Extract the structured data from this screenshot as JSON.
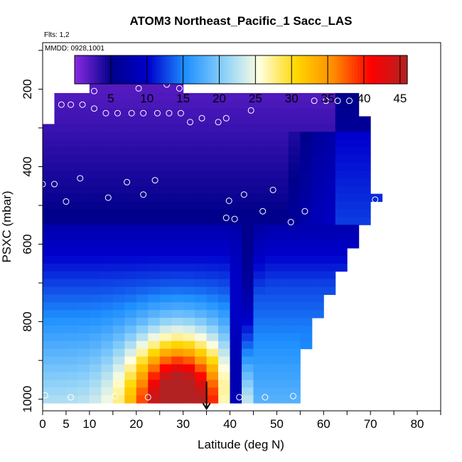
{
  "chart_data": {
    "type": "heatmap",
    "title": "ATOM3 Northeast_Pacific_1 Sacc_LAS",
    "annotations": [
      "Flts: 1,2",
      "MMDD: 0928,1001"
    ],
    "xlabel": "Latitude (deg N)",
    "ylabel": "PSXC (mbar)",
    "xlim": [
      0,
      85
    ],
    "ylim": [
      1030,
      80
    ],
    "x_ticks": [
      0,
      5,
      10,
      20,
      30,
      40,
      50,
      60,
      70,
      80
    ],
    "y_ticks": [
      200,
      400,
      600,
      800,
      1000
    ],
    "colorbar": {
      "range": [
        0,
        46
      ],
      "ticks": [
        5,
        10,
        15,
        20,
        25,
        30,
        35,
        40,
        45
      ],
      "colors": [
        "#8A2BE2",
        "#00008B",
        "#0000CD",
        "#1E90FF",
        "#87CEFA",
        "#FFFFE0",
        "#FFD700",
        "#FF8C00",
        "#FF0000",
        "#B22222"
      ]
    },
    "pressure_levels": [
      180,
      200,
      220,
      240,
      260,
      280,
      300,
      320,
      340,
      360,
      380,
      400,
      420,
      440,
      460,
      480,
      500,
      520,
      540,
      560,
      580,
      600,
      620,
      640,
      660,
      680,
      700,
      720,
      740,
      760,
      780,
      800,
      820,
      840,
      860,
      880,
      900,
      920,
      940,
      960,
      980,
      1000
    ],
    "observations": [
      {
        "lat": 1.8,
        "p": 220
      },
      {
        "lat": 4,
        "p": 240
      },
      {
        "lat": 6,
        "p": 240
      },
      {
        "lat": 8.5,
        "p": 240
      },
      {
        "lat": 11,
        "p": 250
      },
      {
        "lat": 11,
        "p": 205
      },
      {
        "lat": 13.5,
        "p": 262
      },
      {
        "lat": 16,
        "p": 262
      },
      {
        "lat": 19,
        "p": 262
      },
      {
        "lat": 21.5,
        "p": 262
      },
      {
        "lat": 24.5,
        "p": 262
      },
      {
        "lat": 27,
        "p": 262
      },
      {
        "lat": 29.5,
        "p": 262
      },
      {
        "lat": 31.5,
        "p": 285
      },
      {
        "lat": 34,
        "p": 275
      },
      {
        "lat": 37.5,
        "p": 285
      },
      {
        "lat": 39.2,
        "p": 275
      },
      {
        "lat": 44.5,
        "p": 255
      },
      {
        "lat": 58,
        "p": 230
      },
      {
        "lat": 60.5,
        "p": 230
      },
      {
        "lat": 63,
        "p": 230
      },
      {
        "lat": 65.5,
        "p": 230
      },
      {
        "lat": 68.5,
        "p": 230
      },
      {
        "lat": 20.5,
        "p": 198
      },
      {
        "lat": 26.5,
        "p": 188
      },
      {
        "lat": 29.2,
        "p": 198
      },
      {
        "lat": 0,
        "p": 445
      },
      {
        "lat": 2.5,
        "p": 445
      },
      {
        "lat": 5,
        "p": 490
      },
      {
        "lat": 8,
        "p": 430
      },
      {
        "lat": 14,
        "p": 480
      },
      {
        "lat": 18,
        "p": 440
      },
      {
        "lat": 21.5,
        "p": 472
      },
      {
        "lat": 24,
        "p": 435
      },
      {
        "lat": 39.8,
        "p": 488
      },
      {
        "lat": 39.2,
        "p": 532
      },
      {
        "lat": 41,
        "p": 535
      },
      {
        "lat": 43,
        "p": 472
      },
      {
        "lat": 47,
        "p": 515
      },
      {
        "lat": 49.2,
        "p": 460
      },
      {
        "lat": 53,
        "p": 543
      },
      {
        "lat": 56,
        "p": 515
      },
      {
        "lat": 71,
        "p": 485
      },
      {
        "lat": 0.5,
        "p": 990
      },
      {
        "lat": 6,
        "p": 995
      },
      {
        "lat": 15.5,
        "p": 992
      },
      {
        "lat": 22.5,
        "p": 995
      },
      {
        "lat": 42,
        "p": 995
      },
      {
        "lat": 47.5,
        "p": 995
      },
      {
        "lat": 53.5,
        "p": 992
      }
    ],
    "arrow_marker": {
      "lat": 35,
      "p_from": 955,
      "p_to": 1025
    }
  }
}
